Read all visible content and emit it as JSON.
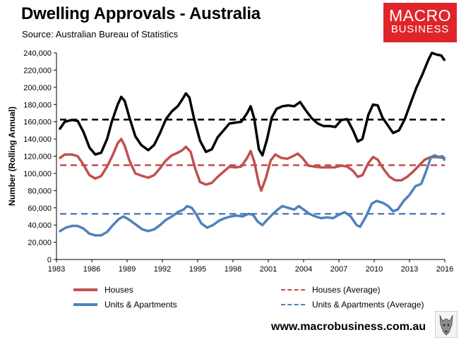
{
  "header": {
    "title": "Dwelling Approvals - Australia",
    "subtitle": "Source: Australian Bureau of Statistics"
  },
  "logo": {
    "line1": "MACRO",
    "line2": "BUSINESS",
    "color": "#e0242b"
  },
  "footer": {
    "url": "www.macrobusiness.com.au"
  },
  "colors": {
    "total": "#000000",
    "houses": "#c0504d",
    "units": "#4f81bd"
  },
  "chart_data": {
    "type": "line",
    "title": "Dwelling Approvals - Australia",
    "ylabel": "Number (Rolling Annual)",
    "xlabel": "",
    "xlim": [
      1983,
      2016
    ],
    "ylim": [
      0,
      240000
    ],
    "grid": false,
    "legend_position": "bottom",
    "x_ticks": [
      "1983",
      "1986",
      "1989",
      "1992",
      "1995",
      "1998",
      "2001",
      "2004",
      "2007",
      "2010",
      "2013",
      "2016"
    ],
    "y_ticks": [
      "0",
      "20,000",
      "40,000",
      "60,000",
      "80,000",
      "100,000",
      "120,000",
      "140,000",
      "160,000",
      "180,000",
      "200,000",
      "220,000",
      "240,000"
    ],
    "x_tick_values": [
      1983,
      1986,
      1989,
      1992,
      1995,
      1998,
      2001,
      2004,
      2007,
      2010,
      2013,
      2016
    ],
    "y_tick_values": [
      0,
      20000,
      40000,
      60000,
      80000,
      100000,
      120000,
      140000,
      160000,
      180000,
      200000,
      220000,
      240000
    ],
    "series": [
      {
        "key": "total",
        "color": "#000000",
        "style": "solid",
        "points": [
          [
            1983.3,
            152000
          ],
          [
            1983.7,
            160000
          ],
          [
            1984.3,
            162000
          ],
          [
            1984.8,
            161000
          ],
          [
            1985.3,
            148000
          ],
          [
            1985.8,
            130000
          ],
          [
            1986.3,
            122000
          ],
          [
            1986.8,
            124000
          ],
          [
            1987.3,
            140000
          ],
          [
            1987.7,
            160000
          ],
          [
            1988.2,
            180000
          ],
          [
            1988.5,
            189000
          ],
          [
            1988.8,
            184000
          ],
          [
            1989.2,
            165000
          ],
          [
            1989.7,
            143000
          ],
          [
            1990.2,
            133000
          ],
          [
            1990.8,
            127000
          ],
          [
            1991.3,
            133000
          ],
          [
            1991.8,
            147000
          ],
          [
            1992.3,
            163000
          ],
          [
            1992.8,
            172000
          ],
          [
            1993.3,
            178000
          ],
          [
            1993.7,
            186000
          ],
          [
            1994.0,
            193000
          ],
          [
            1994.3,
            188000
          ],
          [
            1994.7,
            163000
          ],
          [
            1995.2,
            138000
          ],
          [
            1995.7,
            125000
          ],
          [
            1996.2,
            128000
          ],
          [
            1996.7,
            142000
          ],
          [
            1997.2,
            150000
          ],
          [
            1997.7,
            158000
          ],
          [
            1998.2,
            159000
          ],
          [
            1998.7,
            160000
          ],
          [
            1999.2,
            170000
          ],
          [
            1999.5,
            178000
          ],
          [
            1999.8,
            164000
          ],
          [
            2000.2,
            128000
          ],
          [
            2000.5,
            121000
          ],
          [
            2000.9,
            140000
          ],
          [
            2001.3,
            165000
          ],
          [
            2001.7,
            175000
          ],
          [
            2002.2,
            178000
          ],
          [
            2002.7,
            179000
          ],
          [
            2003.2,
            178000
          ],
          [
            2003.7,
            183000
          ],
          [
            2004.2,
            173000
          ],
          [
            2004.7,
            164000
          ],
          [
            2005.2,
            158000
          ],
          [
            2005.7,
            155000
          ],
          [
            2006.2,
            155000
          ],
          [
            2006.7,
            154000
          ],
          [
            2007.2,
            162000
          ],
          [
            2007.7,
            163000
          ],
          [
            2008.2,
            150000
          ],
          [
            2008.6,
            137000
          ],
          [
            2009.0,
            140000
          ],
          [
            2009.5,
            168000
          ],
          [
            2009.9,
            180000
          ],
          [
            2010.3,
            179000
          ],
          [
            2010.7,
            165000
          ],
          [
            2011.2,
            155000
          ],
          [
            2011.6,
            147000
          ],
          [
            2012.1,
            150000
          ],
          [
            2012.6,
            163000
          ],
          [
            2013.1,
            182000
          ],
          [
            2013.6,
            200000
          ],
          [
            2014.1,
            215000
          ],
          [
            2014.6,
            232000
          ],
          [
            2014.9,
            240000
          ],
          [
            2015.3,
            238000
          ],
          [
            2015.7,
            237000
          ],
          [
            2015.95,
            232000
          ]
        ]
      },
      {
        "key": "total_avg",
        "color": "#000000",
        "style": "dashed",
        "points": [
          [
            1983.3,
            162500
          ],
          [
            2016.0,
            162500
          ]
        ]
      },
      {
        "key": "houses",
        "name": "Houses",
        "color": "#c0504d",
        "style": "solid",
        "points": [
          [
            1983.3,
            118000
          ],
          [
            1983.7,
            122000
          ],
          [
            1984.3,
            122000
          ],
          [
            1984.8,
            120000
          ],
          [
            1985.3,
            110000
          ],
          [
            1985.8,
            98000
          ],
          [
            1986.3,
            94000
          ],
          [
            1986.8,
            97000
          ],
          [
            1987.3,
            108000
          ],
          [
            1987.8,
            122000
          ],
          [
            1988.2,
            135000
          ],
          [
            1988.5,
            140000
          ],
          [
            1988.8,
            132000
          ],
          [
            1989.2,
            115000
          ],
          [
            1989.7,
            100000
          ],
          [
            1990.3,
            97000
          ],
          [
            1990.8,
            95000
          ],
          [
            1991.3,
            98000
          ],
          [
            1991.8,
            106000
          ],
          [
            1992.3,
            115000
          ],
          [
            1992.8,
            121000
          ],
          [
            1993.3,
            124000
          ],
          [
            1993.7,
            127000
          ],
          [
            1994.0,
            131000
          ],
          [
            1994.4,
            125000
          ],
          [
            1994.8,
            105000
          ],
          [
            1995.2,
            90000
          ],
          [
            1995.7,
            87000
          ],
          [
            1996.2,
            89000
          ],
          [
            1996.7,
            96000
          ],
          [
            1997.2,
            102000
          ],
          [
            1997.7,
            108000
          ],
          [
            1998.2,
            107000
          ],
          [
            1998.7,
            108000
          ],
          [
            1999.2,
            118000
          ],
          [
            1999.5,
            126000
          ],
          [
            1999.8,
            114000
          ],
          [
            2000.2,
            88000
          ],
          [
            2000.4,
            80000
          ],
          [
            2000.8,
            95000
          ],
          [
            2001.2,
            115000
          ],
          [
            2001.6,
            122000
          ],
          [
            2002.1,
            118000
          ],
          [
            2002.6,
            117000
          ],
          [
            2003.1,
            120000
          ],
          [
            2003.5,
            123000
          ],
          [
            2003.9,
            118000
          ],
          [
            2004.4,
            109000
          ],
          [
            2004.9,
            108000
          ],
          [
            2005.5,
            107000
          ],
          [
            2006.0,
            107000
          ],
          [
            2006.6,
            107000
          ],
          [
            2007.2,
            109000
          ],
          [
            2007.7,
            108000
          ],
          [
            2008.2,
            103000
          ],
          [
            2008.6,
            96000
          ],
          [
            2009.0,
            98000
          ],
          [
            2009.5,
            112000
          ],
          [
            2009.9,
            119000
          ],
          [
            2010.3,
            116000
          ],
          [
            2010.8,
            105000
          ],
          [
            2011.3,
            96000
          ],
          [
            2011.8,
            92000
          ],
          [
            2012.3,
            92000
          ],
          [
            2012.8,
            96000
          ],
          [
            2013.3,
            102000
          ],
          [
            2013.8,
            109000
          ],
          [
            2014.3,
            116000
          ],
          [
            2014.8,
            119000
          ],
          [
            2015.3,
            119000
          ],
          [
            2015.95,
            118000
          ]
        ]
      },
      {
        "key": "houses_avg",
        "name": "Houses (Average)",
        "color": "#c0504d",
        "style": "dashed",
        "points": [
          [
            1983.3,
            109500
          ],
          [
            2016.0,
            109500
          ]
        ]
      },
      {
        "key": "units",
        "name": "Units & Apartments",
        "color": "#4f81bd",
        "style": "solid",
        "points": [
          [
            1983.3,
            33000
          ],
          [
            1983.8,
            37000
          ],
          [
            1984.3,
            39000
          ],
          [
            1984.8,
            39000
          ],
          [
            1985.3,
            36000
          ],
          [
            1985.8,
            30000
          ],
          [
            1986.3,
            28000
          ],
          [
            1986.8,
            28000
          ],
          [
            1987.3,
            32000
          ],
          [
            1987.8,
            40000
          ],
          [
            1988.3,
            47000
          ],
          [
            1988.7,
            50000
          ],
          [
            1989.2,
            46000
          ],
          [
            1989.8,
            40000
          ],
          [
            1990.3,
            35000
          ],
          [
            1990.8,
            33000
          ],
          [
            1991.3,
            35000
          ],
          [
            1991.8,
            40000
          ],
          [
            1992.3,
            46000
          ],
          [
            1992.8,
            50000
          ],
          [
            1993.3,
            55000
          ],
          [
            1993.8,
            58000
          ],
          [
            1994.1,
            62000
          ],
          [
            1994.5,
            60000
          ],
          [
            1994.9,
            52000
          ],
          [
            1995.3,
            42000
          ],
          [
            1995.8,
            37000
          ],
          [
            1996.3,
            40000
          ],
          [
            1996.8,
            45000
          ],
          [
            1997.3,
            48000
          ],
          [
            1997.8,
            50000
          ],
          [
            1998.3,
            51000
          ],
          [
            1998.8,
            50000
          ],
          [
            1999.3,
            53000
          ],
          [
            1999.7,
            52000
          ],
          [
            2000.1,
            44000
          ],
          [
            2000.5,
            40000
          ],
          [
            2000.9,
            46000
          ],
          [
            2001.4,
            53000
          ],
          [
            2001.8,
            58000
          ],
          [
            2002.2,
            62000
          ],
          [
            2002.7,
            60000
          ],
          [
            2003.2,
            58000
          ],
          [
            2003.6,
            62000
          ],
          [
            2004.0,
            58000
          ],
          [
            2004.5,
            53000
          ],
          [
            2005.0,
            50000
          ],
          [
            2005.5,
            48000
          ],
          [
            2006.0,
            49000
          ],
          [
            2006.5,
            48000
          ],
          [
            2007.0,
            52000
          ],
          [
            2007.5,
            55000
          ],
          [
            2008.0,
            50000
          ],
          [
            2008.5,
            40000
          ],
          [
            2008.8,
            38000
          ],
          [
            2009.3,
            50000
          ],
          [
            2009.8,
            65000
          ],
          [
            2010.2,
            68000
          ],
          [
            2010.7,
            66000
          ],
          [
            2011.2,
            62000
          ],
          [
            2011.6,
            56000
          ],
          [
            2012.0,
            58000
          ],
          [
            2012.5,
            68000
          ],
          [
            2013.0,
            75000
          ],
          [
            2013.5,
            85000
          ],
          [
            2014.0,
            88000
          ],
          [
            2014.4,
            102000
          ],
          [
            2014.8,
            118000
          ],
          [
            2015.1,
            121000
          ],
          [
            2015.5,
            119000
          ],
          [
            2015.8,
            120000
          ],
          [
            2015.95,
            116000
          ]
        ]
      },
      {
        "key": "units_avg",
        "name": "Units & Apartments (Average)",
        "color": "#4f81bd",
        "style": "dashed",
        "points": [
          [
            1983.3,
            53000
          ],
          [
            2016.0,
            53000
          ]
        ]
      }
    ]
  }
}
